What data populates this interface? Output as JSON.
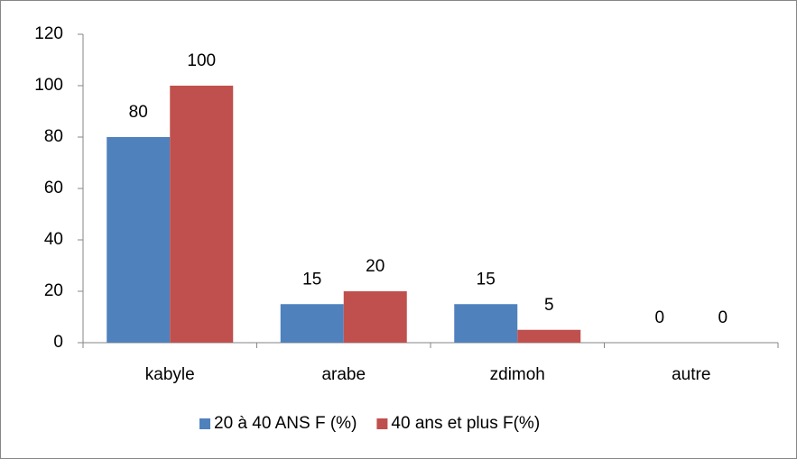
{
  "chart_data": {
    "type": "bar",
    "categories": [
      "kabyle",
      "arabe",
      "zdimoh",
      "autre"
    ],
    "series": [
      {
        "name": "20 à 40 ANS F (%)",
        "color": "#4f81bd",
        "values": [
          80,
          15,
          15,
          0
        ]
      },
      {
        "name": "40 ans et plus F(%)",
        "color": "#c0504d",
        "values": [
          100,
          20,
          5,
          0
        ]
      }
    ],
    "ylim": [
      0,
      120
    ],
    "yticks": [
      0,
      20,
      40,
      60,
      80,
      100,
      120
    ],
    "grid": false,
    "legend": "bottom"
  }
}
